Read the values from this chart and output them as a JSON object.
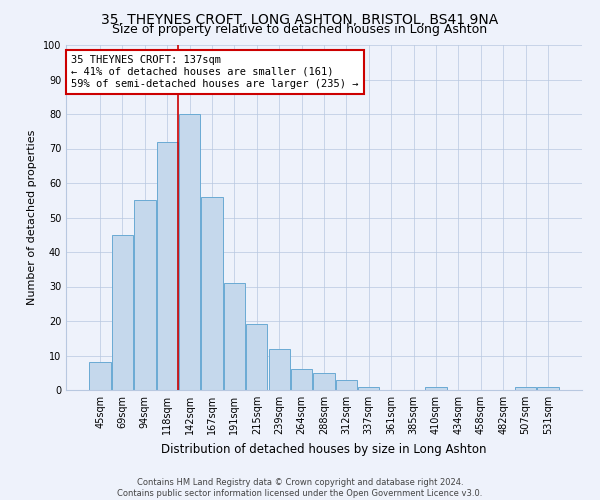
{
  "title": "35, THEYNES CROFT, LONG ASHTON, BRISTOL, BS41 9NA",
  "subtitle": "Size of property relative to detached houses in Long Ashton",
  "xlabel": "Distribution of detached houses by size in Long Ashton",
  "ylabel": "Number of detached properties",
  "footer_line1": "Contains HM Land Registry data © Crown copyright and database right 2024.",
  "footer_line2": "Contains public sector information licensed under the Open Government Licence v3.0.",
  "bar_labels": [
    "45sqm",
    "69sqm",
    "94sqm",
    "118sqm",
    "142sqm",
    "167sqm",
    "191sqm",
    "215sqm",
    "239sqm",
    "264sqm",
    "288sqm",
    "312sqm",
    "337sqm",
    "361sqm",
    "385sqm",
    "410sqm",
    "434sqm",
    "458sqm",
    "482sqm",
    "507sqm",
    "531sqm"
  ],
  "bar_values": [
    8,
    45,
    55,
    72,
    80,
    56,
    31,
    19,
    12,
    6,
    5,
    3,
    1,
    0,
    0,
    1,
    0,
    0,
    0,
    1,
    1
  ],
  "bar_color": "#c5d8ec",
  "bar_edge_color": "#6aaad4",
  "background_color": "#eef2fb",
  "grid_color": "#b8c8e0",
  "annotation_label": "35 THEYNES CROFT: 137sqm",
  "annotation_line1": "← 41% of detached houses are smaller (161)",
  "annotation_line2": "59% of semi-detached houses are larger (235) →",
  "annotation_box_facecolor": "#ffffff",
  "annotation_box_edgecolor": "#cc0000",
  "vline_color": "#cc0000",
  "title_fontsize": 10,
  "subtitle_fontsize": 9,
  "ylabel_fontsize": 8,
  "xlabel_fontsize": 8.5,
  "tick_fontsize": 7,
  "annotation_fontsize": 7.5,
  "footer_fontsize": 6,
  "ylim": [
    0,
    100
  ]
}
